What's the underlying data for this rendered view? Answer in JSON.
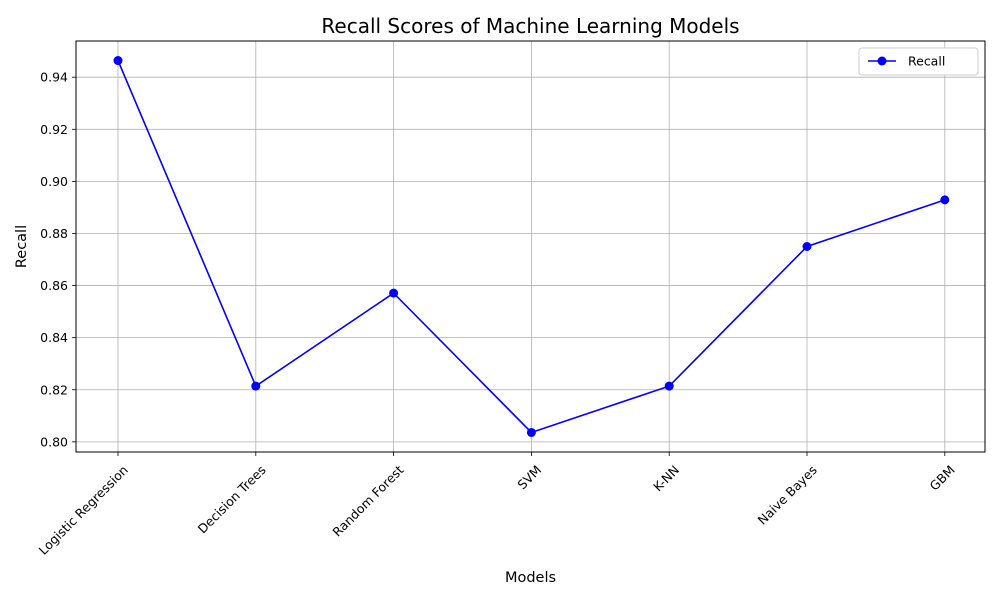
{
  "chart_data": {
    "type": "line",
    "title": "Recall Scores of Machine Learning Models",
    "xlabel": "Models",
    "ylabel": "Recall",
    "categories": [
      "Logistic Regression",
      "Decision Trees",
      "Random Forest",
      "SVM",
      "K-NN",
      "Naive Bayes",
      "GBM"
    ],
    "series": [
      {
        "name": "Recall",
        "color": "#0000ff",
        "marker": "circle",
        "values": [
          0.9464,
          0.8214,
          0.8571,
          0.8036,
          0.8214,
          0.875,
          0.8929
        ]
      }
    ],
    "ylim": [
      0.7961,
      0.9539
    ],
    "yticks": [
      "0.80",
      "0.82",
      "0.84",
      "0.86",
      "0.88",
      "0.90",
      "0.92",
      "0.94"
    ],
    "grid": true,
    "legend_position": "top-right",
    "xtick_rotation_deg": 45
  }
}
